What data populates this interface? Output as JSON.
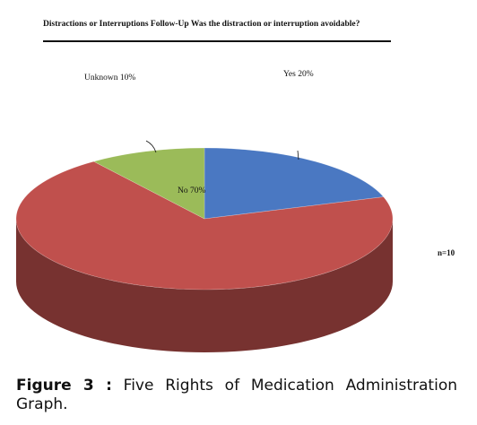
{
  "chart_data": {
    "type": "pie",
    "title": "Distractions or Interruptions Follow-Up Was the distraction or interruption avoidable?",
    "slices": [
      {
        "label": "Yes 20%",
        "category": "Yes",
        "value": 20,
        "color": "#4a78c2"
      },
      {
        "label": "No 70%",
        "category": "No",
        "value": 70,
        "color": "#c0504d"
      },
      {
        "label": "Unknown 10%",
        "category": "Unknown",
        "value": 10,
        "color": "#9bbb59"
      }
    ],
    "annotation": "n=10",
    "style": "3d"
  },
  "caption": {
    "figure_label": "Figure 3 :",
    "text": "Five Rights of Medication Administration Graph."
  }
}
